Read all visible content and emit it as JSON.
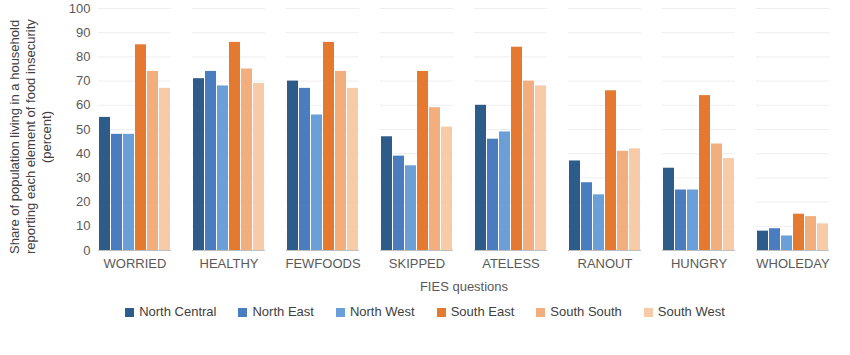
{
  "chart_data": {
    "type": "bar",
    "y_label": "Share of population living in a household reporting each element of food insecurity (percent)",
    "x_label": "FIES questions",
    "categories": [
      "WORRIED",
      "HEALTHY",
      "FEWFOODS",
      "SKIPPED",
      "ATELESS",
      "RANOUT",
      "HUNGRY",
      "WHOLEDAY"
    ],
    "series": [
      {
        "name": "North Central",
        "color": "#2e5c8a",
        "values": [
          55,
          71,
          70,
          47,
          60,
          37,
          34,
          8
        ]
      },
      {
        "name": "North East",
        "color": "#4a7dbf",
        "values": [
          48,
          74,
          67,
          39,
          46,
          28,
          25,
          9
        ]
      },
      {
        "name": "North West",
        "color": "#6a9fd8",
        "values": [
          48,
          68,
          56,
          35,
          49,
          23,
          25,
          6
        ]
      },
      {
        "name": "South East",
        "color": "#e5792f",
        "values": [
          85,
          86,
          86,
          74,
          84,
          66,
          64,
          15
        ]
      },
      {
        "name": "South South",
        "color": "#f2ae7c",
        "values": [
          74,
          75,
          74,
          59,
          70,
          41,
          44,
          14
        ]
      },
      {
        "name": "South West",
        "color": "#f7caa8",
        "values": [
          67,
          69,
          67,
          51,
          68,
          42,
          38,
          11
        ]
      }
    ],
    "ylim": [
      0,
      100
    ],
    "yticks": [
      0,
      10,
      20,
      30,
      40,
      50,
      60,
      70,
      80,
      90,
      100
    ],
    "grid": true,
    "legend": "bottom"
  }
}
